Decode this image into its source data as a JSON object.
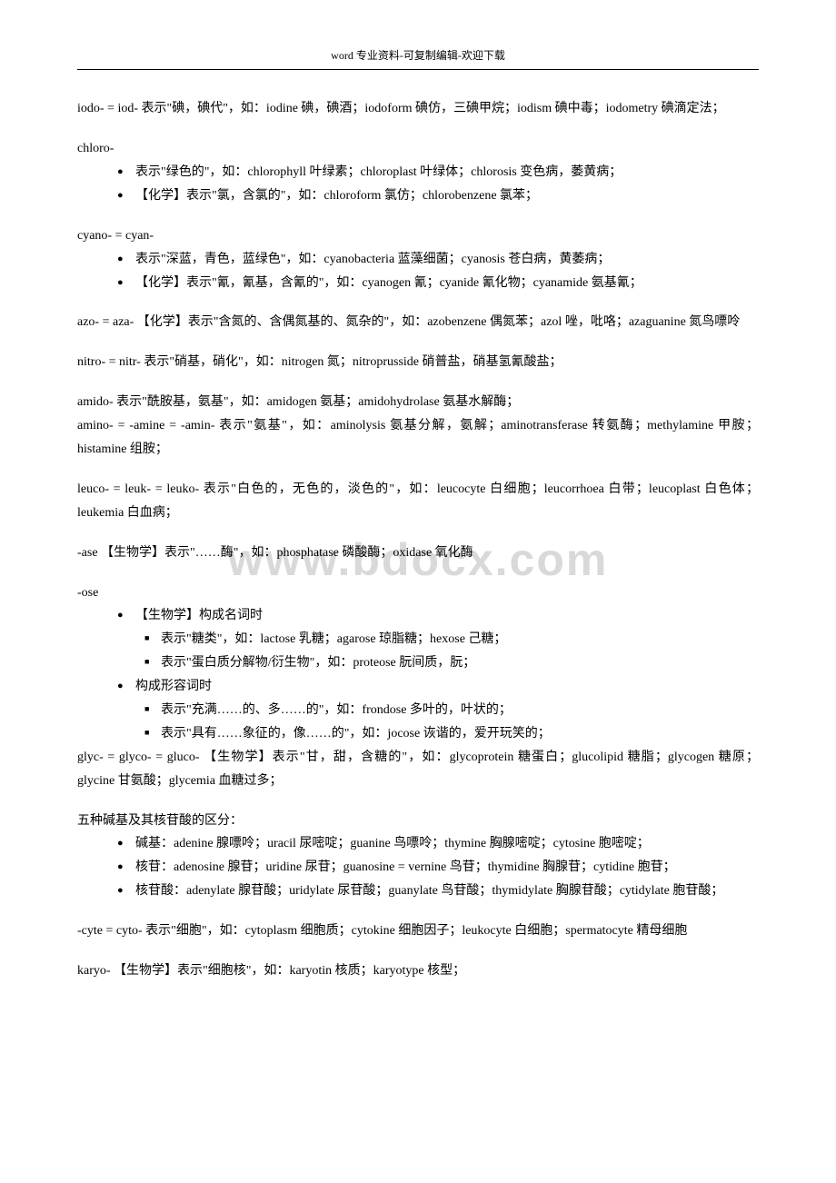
{
  "header": "word 专业资料-可复制编辑-欢迎下载",
  "watermark": "www.bdocx.com",
  "entries": {
    "iodo": "iodo- = iod- 表示\"碘，碘代\"，如：iodine 碘，碘酒；iodoform 碘仿，三碘甲烷；iodism 碘中毒；iodometry 碘滴定法；",
    "chloro_head": "chloro-",
    "chloro_b1": "表示\"绿色的\"，如：chlorophyll 叶绿素；chloroplast 叶绿体；chlorosis 变色病，萎黄病；",
    "chloro_b2": "【化学】表示\"氯，含氯的\"，如：chloroform 氯仿；chlorobenzene 氯苯；",
    "cyano_head": "cyano- = cyan-",
    "cyano_b1": "表示\"深蓝，青色，蓝绿色\"，如：cyanobacteria 蓝藻细菌；cyanosis 苍白病，黄萎病；",
    "cyano_b2": "【化学】表示\"氰，氰基，含氰的\"，如：cyanogen 氰；cyanide 氰化物；cyanamide 氨基氰；",
    "azo": "azo- = aza- 【化学】表示\"含氮的、含偶氮基的、氮杂的\"，如：azobenzene 偶氮苯；azol 唑，吡咯；azaguanine 氮鸟嘌呤",
    "nitro": "nitro- = nitr- 表示\"硝基，硝化\"，如：nitrogen 氮；nitroprusside 硝普盐，硝基氢氰酸盐；",
    "amido": "amido- 表示\"酰胺基，氨基\"，如：amidogen 氨基；amidohydrolase 氨基水解酶；",
    "amino": "amino- = -amine = -amin- 表示\"氨基\"，如：aminolysis 氨基分解，氨解；aminotransferase 转氨酶；methylamine 甲胺；histamine 组胺；",
    "leuco": "leuco- = leuk- = leuko- 表示\"白色的，无色的，淡色的\"，如：leucocyte 白细胞；leucorrhoea 白带；leucoplast 白色体；leukemia 白血病；",
    "ase": "-ase 【生物学】表示\"……酶\"，如：phosphatase 磷酸酶；oxidase 氧化酶",
    "ose_head": "-ose",
    "ose_b1": "【生物学】构成名词时",
    "ose_s1": "表示\"糖类\"，如：lactose 乳糖；agarose 琼脂糖；hexose 己糖；",
    "ose_s2": "表示\"蛋白质分解物/衍生物\"，如：proteose 朊间质，朊；",
    "ose_b2": "构成形容词时",
    "ose_s3": "表示\"充满……的、多……的\"，如：frondose 多叶的，叶状的；",
    "ose_s4": "表示\"具有……象征的，像……的\"，如：jocose 诙谐的，爱开玩笑的；",
    "glyc": "glyc- = glyco- = gluco- 【生物学】表示\"甘，甜，含糖的\"，如：glycoprotein 糖蛋白；glucolipid 糖脂；glycogen 糖原；glycine 甘氨酸；glycemia 血糖过多；",
    "bases_head": "五种碱基及其核苷酸的区分：",
    "bases_b1": "碱基：adenine 腺嘌呤；uracil 尿嘧啶；guanine 鸟嘌呤；thymine 胸腺嘧啶；cytosine 胞嘧啶；",
    "bases_b2": "核苷：adenosine 腺苷；uridine 尿苷；guanosine = vernine 鸟苷；thymidine 胸腺苷；cytidine 胞苷；",
    "bases_b3": "核苷酸：adenylate 腺苷酸；uridylate 尿苷酸；guanylate 鸟苷酸；thymidylate 胸腺苷酸；cytidylate 胞苷酸；",
    "cyte": "-cyte = cyto- 表示\"细胞\"，如：cytoplasm 细胞质；cytokine 细胞因子；leukocyte 白细胞；spermatocyte 精母细胞",
    "karyo": "karyo- 【生物学】表示\"细胞核\"，如：karyotin 核质；karyotype 核型；"
  }
}
